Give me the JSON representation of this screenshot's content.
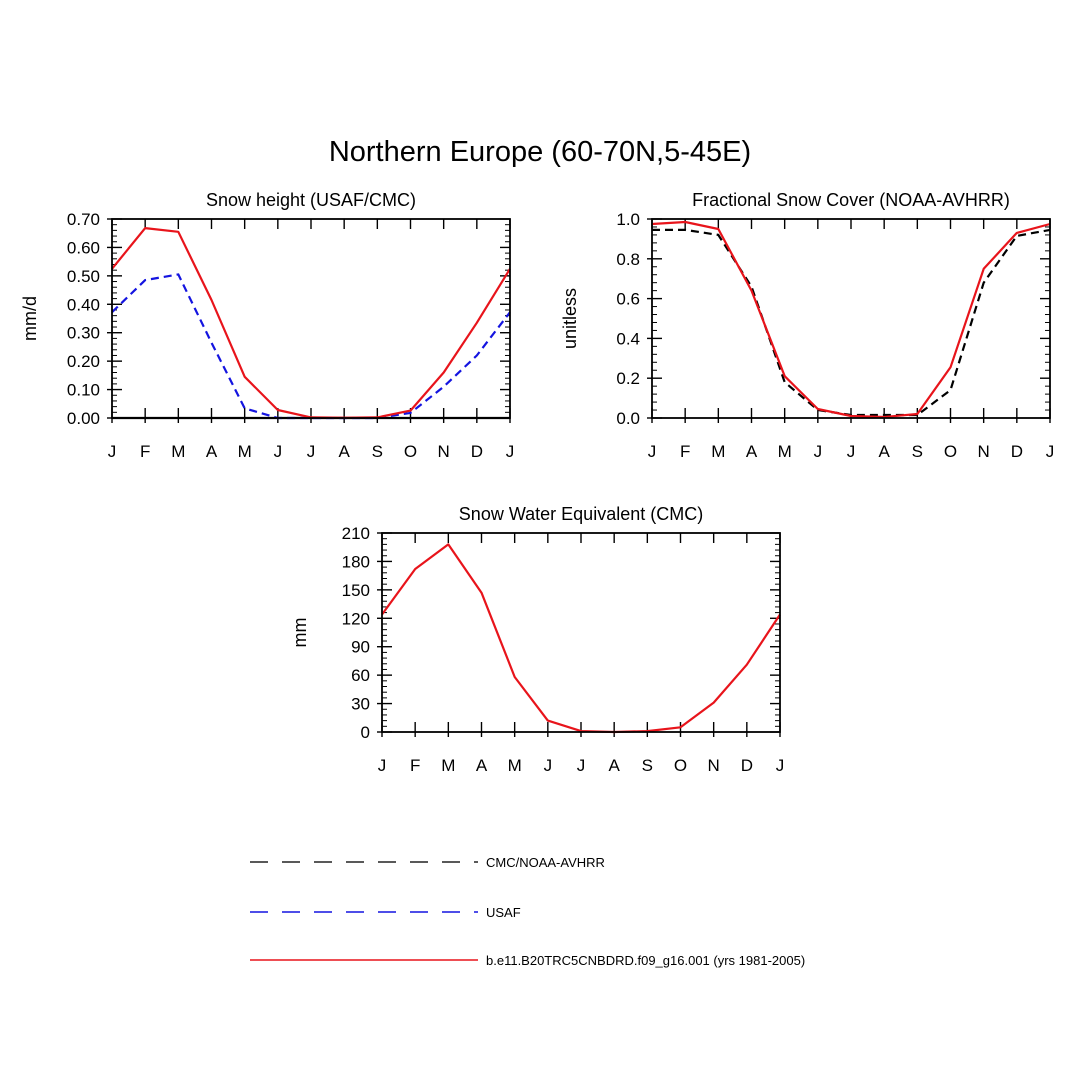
{
  "title": "Northern Europe (60-70N,5-45E)",
  "colors": {
    "model": "#e8141b",
    "usaf": "#1414e0",
    "obs": "#000000"
  },
  "chart_data": [
    {
      "id": "snow-height",
      "type": "line",
      "title": "Snow height (USAF/CMC)",
      "ylabel": "mm/d",
      "ylim": [
        0,
        0.7
      ],
      "yticks": [
        "0.00",
        "0.10",
        "0.20",
        "0.30",
        "0.40",
        "0.50",
        "0.60",
        "0.70"
      ],
      "ytick_values": [
        0,
        0.1,
        0.2,
        0.3,
        0.4,
        0.5,
        0.6,
        0.7
      ],
      "categories": [
        "J",
        "F",
        "M",
        "A",
        "M",
        "J",
        "J",
        "A",
        "S",
        "O",
        "N",
        "D",
        "J"
      ],
      "series": [
        {
          "name": "b.e11.B20TRC5CNBDRD.f09_g16.001 (yrs 1981-2005)",
          "style": "solid",
          "color": "#e8141b",
          "values": [
            0.525,
            0.668,
            0.655,
            0.415,
            0.145,
            0.028,
            0.002,
            0.001,
            0.002,
            0.026,
            0.16,
            0.335,
            0.525
          ]
        },
        {
          "name": "USAF",
          "style": "dashed",
          "color": "#1414e0",
          "values": [
            0.372,
            0.485,
            0.505,
            0.265,
            0.034,
            0.0,
            0.0,
            0.0,
            0.0,
            0.018,
            0.11,
            0.22,
            0.372
          ]
        },
        {
          "name": "CMC/NOAA-AVHRR",
          "style": "solid",
          "color": "#000000",
          "values": [
            0,
            0,
            0,
            0,
            0,
            0,
            0,
            0,
            0,
            0,
            0,
            0,
            0
          ]
        }
      ]
    },
    {
      "id": "snow-cover",
      "type": "line",
      "title": "Fractional Snow Cover (NOAA-AVHRR)",
      "ylabel": "unitless",
      "ylim": [
        0,
        1.0
      ],
      "yticks": [
        "0.0",
        "0.2",
        "0.4",
        "0.6",
        "0.8",
        "1.0"
      ],
      "ytick_values": [
        0,
        0.2,
        0.4,
        0.6,
        0.8,
        1.0
      ],
      "categories": [
        "J",
        "F",
        "M",
        "A",
        "M",
        "J",
        "J",
        "A",
        "S",
        "O",
        "N",
        "D",
        "J"
      ],
      "series": [
        {
          "name": "b.e11.B20TRC5CNBDRD.f09_g16.001 (yrs 1981-2005)",
          "style": "solid",
          "color": "#e8141b",
          "values": [
            0.975,
            0.985,
            0.95,
            0.64,
            0.21,
            0.045,
            0.01,
            0.005,
            0.02,
            0.255,
            0.75,
            0.93,
            0.975
          ]
        },
        {
          "name": "CMC/NOAA-AVHRR",
          "style": "dashed",
          "color": "#000000",
          "values": [
            0.945,
            0.945,
            0.92,
            0.66,
            0.18,
            0.04,
            0.015,
            0.015,
            0.015,
            0.14,
            0.68,
            0.915,
            0.945
          ]
        }
      ]
    },
    {
      "id": "swe",
      "type": "line",
      "title": "Snow Water Equivalent (CMC)",
      "ylabel": "mm",
      "ylim": [
        0,
        210
      ],
      "yticks": [
        "0",
        "30",
        "60",
        "90",
        "120",
        "150",
        "180",
        "210"
      ],
      "ytick_values": [
        0,
        30,
        60,
        90,
        120,
        150,
        180,
        210
      ],
      "categories": [
        "J",
        "F",
        "M",
        "A",
        "M",
        "J",
        "J",
        "A",
        "S",
        "O",
        "N",
        "D",
        "J"
      ],
      "series": [
        {
          "name": "b.e11.B20TRC5CNBDRD.f09_g16.001 (yrs 1981-2005)",
          "style": "solid",
          "color": "#e8141b",
          "values": [
            124,
            172,
            198,
            147,
            58,
            12,
            1,
            0,
            1,
            5,
            31,
            71,
            124
          ]
        }
      ]
    }
  ],
  "legend": [
    {
      "label": "CMC/NOAA-AVHRR",
      "style": "long-dash",
      "color": "#222222"
    },
    {
      "label": "USAF",
      "style": "long-dash",
      "color": "#1414e0"
    },
    {
      "label": "b.e11.B20TRC5CNBDRD.f09_g16.001 (yrs 1981-2005)",
      "style": "solid",
      "color": "#e8141b"
    }
  ]
}
